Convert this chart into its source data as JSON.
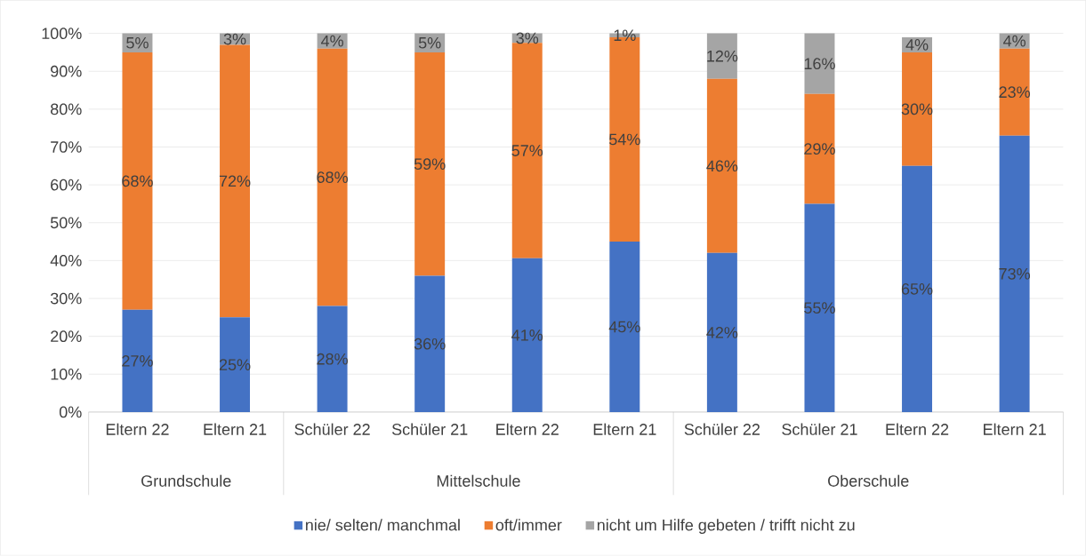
{
  "chart_data": {
    "type": "bar",
    "stacked": true,
    "grid": "y",
    "legend": "bottom",
    "categories": [
      "Eltern 22",
      "Eltern 21",
      "Schüler 22",
      "Schüler 21",
      "Eltern 22",
      "Eltern 21",
      "Schüler 22",
      "Schüler 21",
      "Eltern 22",
      "Eltern 21"
    ],
    "annotations": [
      "Grundschule",
      "Mittelschule",
      "Oberschule"
    ],
    "ylim": [
      0,
      100
    ],
    "yticks": [
      {
        "value": 0,
        "label": "0%"
      },
      {
        "value": 10,
        "label": "10%"
      },
      {
        "value": 20,
        "label": "20%"
      },
      {
        "value": 30,
        "label": "30%"
      },
      {
        "value": 40,
        "label": "40%"
      },
      {
        "value": 50,
        "label": "50%"
      },
      {
        "value": 60,
        "label": "60%"
      },
      {
        "value": 70,
        "label": "70%"
      },
      {
        "value": 80,
        "label": "80%"
      },
      {
        "value": 90,
        "label": "90%"
      },
      {
        "value": 100,
        "label": "100%"
      }
    ],
    "series": [
      {
        "name": "nie/ selten/ manchmal",
        "color": "#4472c4",
        "values": [
          27,
          25,
          28,
          36,
          40.6,
          45,
          42,
          55,
          65,
          73
        ],
        "value_labels": [
          "27%",
          "25%",
          "28%",
          "36%",
          "41%",
          "45%",
          "42%",
          "55%",
          "65%",
          "73%"
        ]
      },
      {
        "name": "oft/immer",
        "color": "#ed7d31",
        "values": [
          68,
          72,
          68,
          59,
          56.9,
          54,
          46,
          29,
          30,
          23
        ],
        "value_labels": [
          "68%",
          "72%",
          "68%",
          "59%",
          "57%",
          "54%",
          "46%",
          "29%",
          "30%",
          "23%"
        ]
      },
      {
        "name": "nicht um Hilfe gebeten / trifft nicht zu",
        "color": "#a5a5a5",
        "values": [
          5,
          3,
          4,
          5,
          2.5,
          1,
          12,
          16,
          4,
          4
        ],
        "value_labels": [
          "5%",
          "3%",
          "4%",
          "5%",
          "3%",
          "1%",
          "12%",
          "16%",
          "4%",
          "4%"
        ]
      }
    ]
  }
}
